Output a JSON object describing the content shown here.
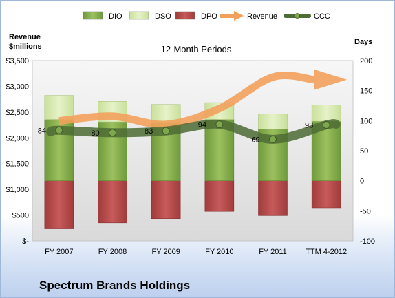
{
  "company": "Spectrum Brands Holdings",
  "chart_data": {
    "type": "bar",
    "title": "12-Month Periods",
    "categories": [
      "FY 2007",
      "FY 2008",
      "FY 2009",
      "FY 2010",
      "FY 2011",
      "TTM 4-2012"
    ],
    "legend": {
      "placement": "top",
      "items": [
        {
          "name": "DIO",
          "marker": "box",
          "color": "#8db050"
        },
        {
          "name": "DSO",
          "marker": "box",
          "color": "#d9ebb5"
        },
        {
          "name": "DPO",
          "marker": "box",
          "color": "#b84a4a"
        },
        {
          "name": "Revenue",
          "marker": "arrow",
          "color": "#f2a15c"
        },
        {
          "name": "CCC",
          "marker": "line-dot",
          "color": "#4e6b34"
        }
      ]
    },
    "y_left": {
      "label_line1": "Revenue",
      "label_line2": "$millions",
      "range": [
        0,
        3500
      ],
      "ticks": [
        0,
        500,
        1000,
        1500,
        2000,
        2500,
        3000,
        3500
      ],
      "tick_labels": [
        "$-",
        "$500",
        "$1,000",
        "$1,500",
        "$2,000",
        "$2,500",
        "$3,000",
        "$3,500"
      ]
    },
    "y_right": {
      "label": "Days",
      "range": [
        -100,
        200
      ],
      "ticks": [
        -100,
        -50,
        0,
        50,
        100,
        150,
        200
      ],
      "tick_labels": [
        "-100",
        "-50",
        "0",
        "50",
        "100",
        "150",
        "200"
      ]
    },
    "grid": false,
    "series": [
      {
        "name": "DIO",
        "axis": "right",
        "stack": "positive",
        "color": "#8db050",
        "values": [
          102,
          98,
          97,
          102,
          86,
          99
        ]
      },
      {
        "name": "DSO",
        "axis": "right",
        "stack": "positive",
        "color": "#d9ebb5",
        "values": [
          40,
          34,
          30,
          28,
          25,
          27
        ]
      },
      {
        "name": "DPO",
        "axis": "right",
        "stack": "negative",
        "color": "#b84a4a",
        "values": [
          -80,
          -70,
          -63,
          -51,
          -58,
          -45
        ]
      },
      {
        "name": "CCC",
        "axis": "right",
        "type": "line",
        "color": "#4e6b34",
        "values": [
          84,
          80,
          83,
          94,
          69,
          93
        ],
        "data_labels": [
          "84",
          "80",
          "83",
          "94",
          "69",
          "93"
        ]
      },
      {
        "name": "Revenue",
        "axis": "left",
        "type": "arrow-line",
        "color": "#f2a15c",
        "values": [
          2330,
          2420,
          2260,
          2570,
          3180,
          3130
        ]
      }
    ]
  }
}
